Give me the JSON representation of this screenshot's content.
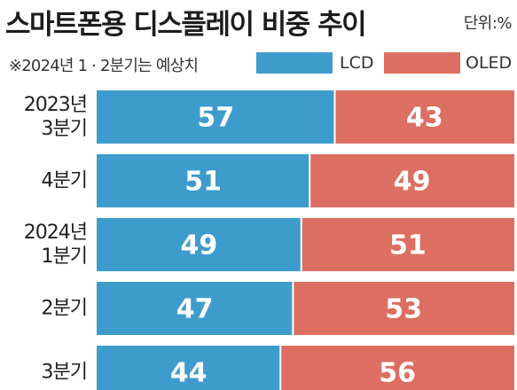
{
  "header": {
    "title": "스마트폰용 디스플레이 비중 추이",
    "unit": "단위:%",
    "note": "※2024년 1 · 2분기는 예상치"
  },
  "colors": {
    "lcd": "#3e9ccc",
    "oled": "#dc6f61",
    "text": "#222222",
    "bar_label": "#ffffff"
  },
  "chart_data": {
    "type": "bar",
    "orientation": "horizontal",
    "stacked": true,
    "title": "스마트폰용 디스플레이 비중 추이",
    "unit": "단위:%",
    "categories": [
      [
        "2023년",
        "3분기"
      ],
      [
        "4분기"
      ],
      [
        "2024년",
        "1분기"
      ],
      [
        "2분기"
      ],
      [
        "3분기"
      ]
    ],
    "series": [
      {
        "name": "LCD",
        "values": [
          57,
          51,
          49,
          47,
          44
        ]
      },
      {
        "name": "OLED",
        "values": [
          43,
          49,
          51,
          53,
          56
        ]
      }
    ],
    "xlim": [
      0,
      100
    ],
    "grid": false,
    "legend": "top-right",
    "data_labels": true
  }
}
